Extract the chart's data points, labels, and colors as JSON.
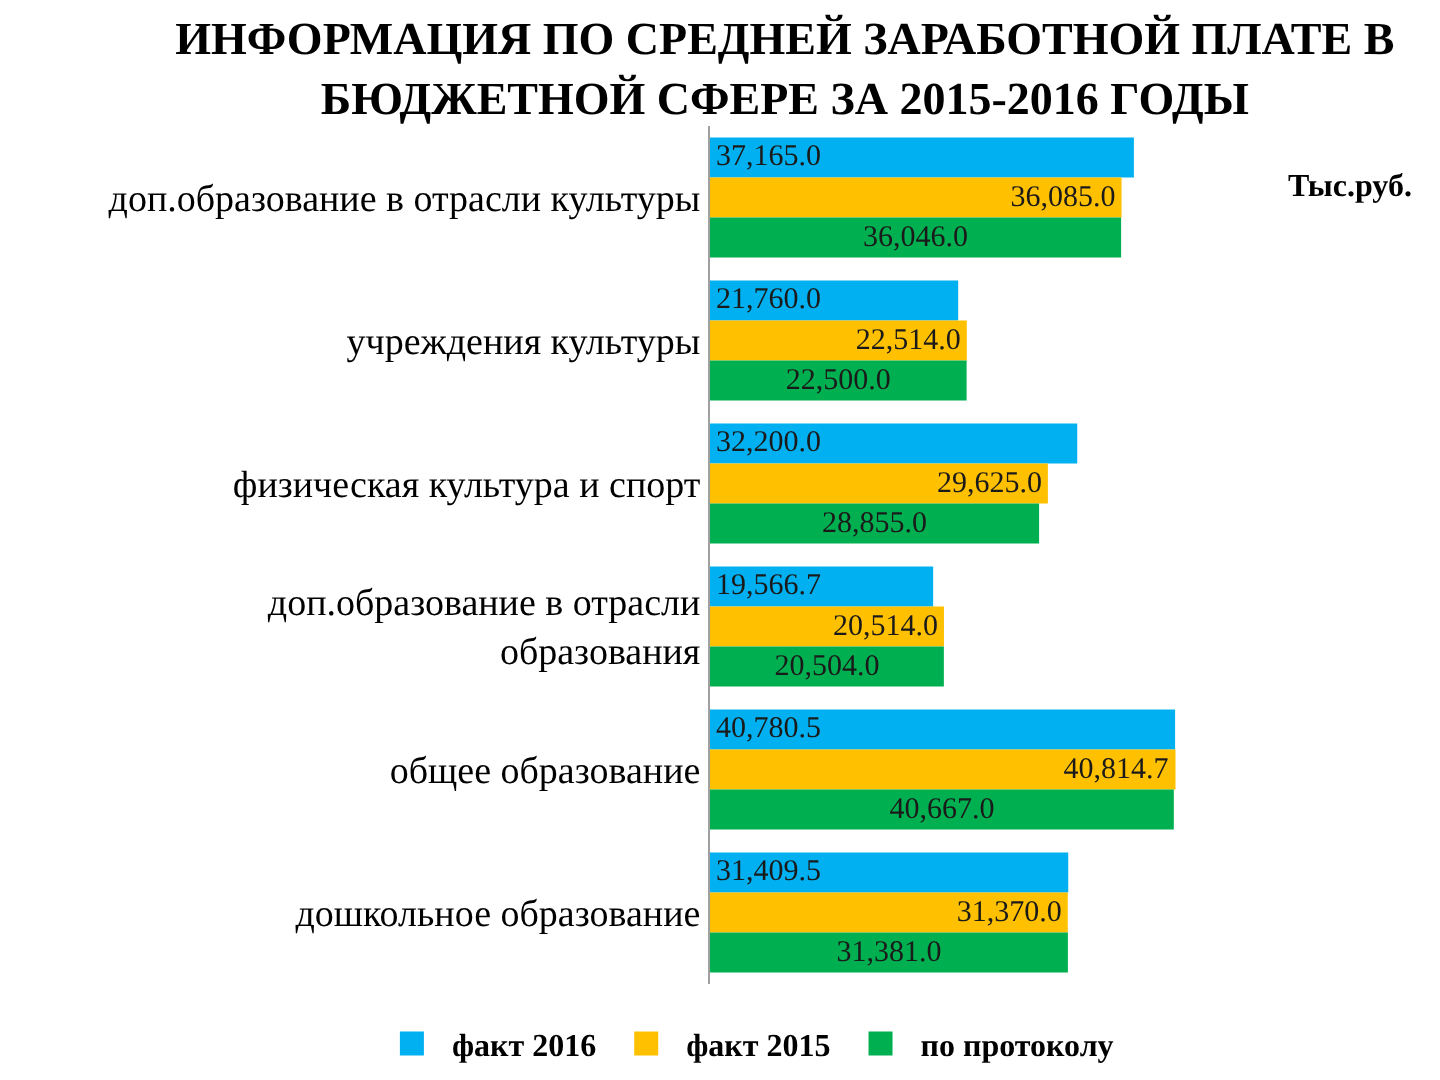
{
  "chart_data": {
    "type": "bar",
    "orientation": "horizontal",
    "title": "ИНФОРМАЦИЯ ПО СРЕДНЕЙ ЗАРАБОТНОЙ ПЛАТЕ В\nБЮДЖЕТНОЙ СФЕРЕ ЗА 2015-2016 ГОДЫ",
    "annotations": [
      "Тыс.руб."
    ],
    "categories": [
      "доп.образование в отрасли культуры",
      "учреждения культуры",
      "физическая культура и спорт",
      "доп.образование в отрасли\nобразования",
      "общее образование",
      "дошкольное образование"
    ],
    "series": [
      {
        "name": "факт 2016",
        "color": "#00b0f0",
        "values": [
          37165.0,
          21760.0,
          32200.0,
          19566.7,
          40780.5,
          31409.5
        ],
        "value_labels": [
          "37,165.0",
          "21,760.0",
          "32,200.0",
          "19,566.7",
          "40,780.5",
          "31,409.5"
        ]
      },
      {
        "name": "факт 2015",
        "color": "#ffc000",
        "values": [
          36085.0,
          22514.0,
          29625.0,
          20514.0,
          40814.7,
          31370.0
        ],
        "value_labels": [
          "36,085.0",
          "22,514.0",
          "29,625.0",
          "20,514.0",
          "40,814.7",
          "31,370.0"
        ]
      },
      {
        "name": "по протоколу",
        "color": "#00b050",
        "values": [
          36046.0,
          22500.0,
          28855.0,
          20504.0,
          40667.0,
          31381.0
        ],
        "value_labels": [
          "36,046.0",
          "22,500.0",
          "28,855.0",
          "20,504.0",
          "40,667.0",
          "31,381.0"
        ]
      }
    ],
    "tick_labels": "y",
    "legend": "bottom"
  }
}
